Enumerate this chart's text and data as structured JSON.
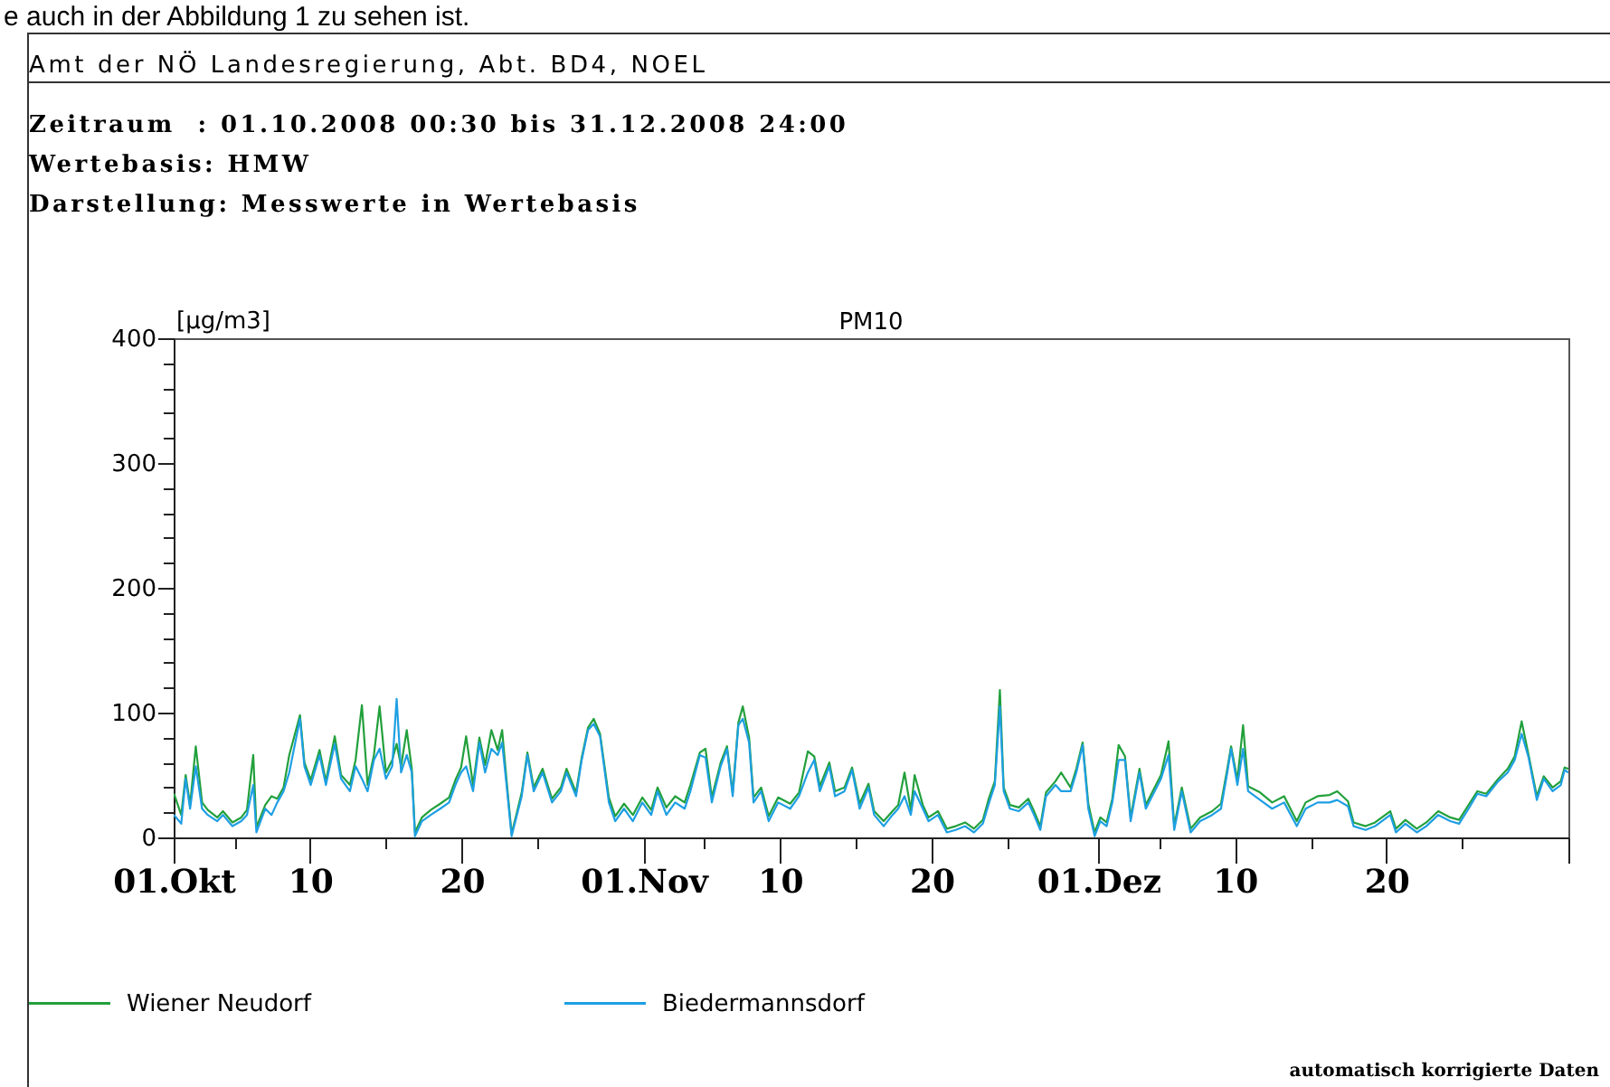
{
  "chart_data": {
    "type": "line",
    "title": "PM10",
    "ylabel": "[μg/m3]",
    "annotations": [
      "e auch in der Abbildung 1 zu sehen ist.",
      "Amt der NÖ Landesregierung, Abt. BD4, NOEL",
      "Zeitraum  : 01.10.2008 00:30 bis 31.12.2008 24:00",
      "Wertebasis: HMW",
      "Darstellung: Messwerte in Wertebasis",
      "automatisch korrigierte Daten"
    ],
    "x": [
      "2008-10-01T00:30",
      "2008-10-01T12:00",
      "2008-10-01T19:00",
      "2008-10-02T02:00",
      "2008-10-02T11:00",
      "2008-10-02T21:00",
      "2008-10-03T06:00",
      "2008-10-03T21:00",
      "2008-10-04T06:00",
      "2008-10-04T21:00",
      "2008-10-05T11:00",
      "2008-10-05T20:00",
      "2008-10-06T06:00",
      "2008-10-06T11:00",
      "2008-10-07T01:00",
      "2008-10-07T11:00",
      "2008-10-07T20:00",
      "2008-10-08T06:00",
      "2008-10-08T15:00",
      "2008-10-09T08:00",
      "2008-10-09T15:00",
      "2008-10-10T01:00",
      "2008-10-10T15:00",
      "2008-10-11T01:00",
      "2008-10-11T15:00",
      "2008-10-12T01:00",
      "2008-10-12T15:00",
      "2008-10-13T00:00",
      "2008-10-13T10:00",
      "2008-10-13T19:00",
      "2008-10-14T05:00",
      "2008-10-14T14:00",
      "2008-10-15T00:00",
      "2008-10-15T10:00",
      "2008-10-15T17:00",
      "2008-10-16T00:00",
      "2008-10-16T09:00",
      "2008-10-16T17:00",
      "2008-10-16T22:00",
      "2008-10-17T09:00",
      "2008-10-17T23:00",
      "2008-10-18T14:00",
      "2008-10-19T04:00",
      "2008-10-19T14:00",
      "2008-10-19T23:00",
      "2008-10-20T07:00",
      "2008-10-20T18:00",
      "2008-10-21T04:00",
      "2008-10-21T13:00",
      "2008-10-21T23:00",
      "2008-10-22T09:00",
      "2008-10-22T16:00",
      "2008-10-22T23:00",
      "2008-10-23T07:00",
      "2008-10-23T13:00",
      "2008-10-23T23:00",
      "2008-10-24T08:00",
      "2008-10-24T18:00",
      "2008-10-25T08:00",
      "2008-10-25T23:00",
      "2008-10-26T13:00",
      "2008-10-26T22:00",
      "2008-10-27T13:00",
      "2008-10-27T22:00",
      "2008-10-28T08:00",
      "2008-10-28T17:00",
      "2008-10-29T03:00",
      "2008-10-29T17:00",
      "2008-10-30T03:00",
      "2008-10-30T17:00",
      "2008-10-31T07:00",
      "2008-10-31T22:00",
      "2008-11-01T12:00",
      "2008-11-01T22:00",
      "2008-11-02T12:00",
      "2008-11-03T02:00",
      "2008-11-03T17:00",
      "2008-11-04T02:00",
      "2008-11-04T17:00",
      "2008-11-05T02:00",
      "2008-11-05T12:00",
      "2008-11-06T02:00",
      "2008-11-06T12:00",
      "2008-11-06T21:00",
      "2008-11-07T06:00",
      "2008-11-07T13:00",
      "2008-11-07T23:00",
      "2008-11-08T06:00",
      "2008-11-08T18:00",
      "2008-11-09T06:00",
      "2008-11-09T21:00",
      "2008-11-10T16:00",
      "2008-11-11T06:00",
      "2008-11-11T20:00",
      "2008-11-12T06:00",
      "2008-11-12T15:00",
      "2008-11-13T06:00",
      "2008-11-13T15:00",
      "2008-11-14T06:00",
      "2008-11-14T18:00",
      "2008-11-15T06:00",
      "2008-11-15T20:00",
      "2008-11-16T05:00",
      "2008-11-16T20:00",
      "2008-11-17T10:00",
      "2008-11-17T19:00",
      "2008-11-18T05:00",
      "2008-11-18T15:00",
      "2008-11-18T21:00",
      "2008-11-19T10:00",
      "2008-11-19T19:00",
      "2008-11-20T10:00",
      "2008-11-21T00:00",
      "2008-11-21T14:00",
      "2008-11-22T05:00",
      "2008-11-22T19:00",
      "2008-11-23T09:00",
      "2008-11-23T19:00",
      "2008-11-24T04:00",
      "2008-11-24T12:00",
      "2008-11-24T18:00",
      "2008-11-25T04:00",
      "2008-11-25T18:00",
      "2008-11-26T09:00",
      "2008-11-26T18:00",
      "2008-11-27T04:00",
      "2008-11-27T13:00",
      "2008-11-28T04:00",
      "2008-11-28T13:00",
      "2008-11-29T04:00",
      "2008-11-29T13:00",
      "2008-11-29T23:00",
      "2008-11-30T08:00",
      "2008-11-30T18:00",
      "2008-12-01T03:00",
      "2008-12-01T13:00",
      "2008-12-01T22:00",
      "2008-12-02T08:00",
      "2008-12-02T18:00",
      "2008-12-03T03:00",
      "2008-12-03T17:00",
      "2008-12-04T03:00",
      "2008-12-04T17:00",
      "2008-12-05T03:00",
      "2008-12-05T15:00",
      "2008-12-06T00:00",
      "2008-12-06T12:00",
      "2008-12-07T02:00",
      "2008-12-07T17:00",
      "2008-12-08T12:00",
      "2008-12-09T02:00",
      "2008-12-09T12:00",
      "2008-12-09T18:00",
      "2008-12-10T04:00",
      "2008-12-10T13:00",
      "2008-12-10T21:00",
      "2008-12-11T16:00",
      "2008-12-12T11:00",
      "2008-12-13T06:00",
      "2008-12-14T02:00",
      "2008-12-14T16:00",
      "2008-12-15T11:00",
      "2008-12-16T06:00",
      "2008-12-16T18:00",
      "2008-12-17T11:00",
      "2008-12-17T20:00",
      "2008-12-18T15:00",
      "2008-12-19T06:00",
      "2008-12-20T06:00",
      "2008-12-20T15:00",
      "2008-12-21T06:00",
      "2008-12-22T00:00",
      "2008-12-22T15:00",
      "2008-12-23T10:00",
      "2008-12-24T05:00",
      "2008-12-24T19:00",
      "2008-12-25T10:00",
      "2008-12-26T00:00",
      "2008-12-26T14:00",
      "2008-12-27T09:00",
      "2008-12-28T00:00",
      "2008-12-28T11:00",
      "2008-12-28T22:00",
      "2008-12-29T09:00",
      "2008-12-29T22:00",
      "2008-12-30T09:00",
      "2008-12-30T23:00",
      "2008-12-31T12:00",
      "2008-12-31T18:00",
      "2009-01-01T00:00"
    ],
    "series": [
      {
        "name": "Wiener Neudorf",
        "color": "#22a03c",
        "values": [
          35,
          18,
          50,
          26,
          73,
          28,
          22,
          16,
          21,
          12,
          16,
          22,
          66,
          8,
          26,
          33,
          31,
          40,
          66,
          98,
          60,
          46,
          70,
          45,
          81,
          50,
          42,
          62,
          106,
          42,
          66,
          105,
          52,
          62,
          75,
          57,
          86,
          55,
          4,
          16,
          22,
          27,
          32,
          46,
          56,
          81,
          42,
          80,
          58,
          86,
          70,
          86,
          46,
          3,
          15,
          36,
          68,
          40,
          55,
          31,
          40,
          55,
          36,
          64,
          88,
          95,
          83,
          32,
          17,
          27,
          18,
          32,
          22,
          40,
          24,
          33,
          28,
          42,
          68,
          71,
          32,
          60,
          73,
          36,
          92,
          105,
          80,
          32,
          40,
          17,
          32,
          27,
          36,
          69,
          65,
          41,
          60,
          37,
          40,
          56,
          27,
          43,
          21,
          13,
          21,
          26,
          52,
          22,
          50,
          26,
          16,
          21,
          7,
          9,
          12,
          7,
          14,
          32,
          45,
          118,
          40,
          26,
          24,
          31,
          21,
          9,
          36,
          45,
          52,
          40,
          55,
          76,
          27,
          4,
          16,
          12,
          31,
          74,
          65,
          16,
          55,
          26,
          40,
          50,
          77,
          9,
          40,
          7,
          16,
          21,
          27,
          55,
          73,
          46,
          90,
          41,
          36,
          28,
          33,
          13,
          28,
          33,
          34,
          37,
          29,
          12,
          9,
          12,
          21,
          7,
          14,
          7,
          12,
          21,
          16,
          14,
          26,
          37,
          35,
          47,
          55,
          65,
          93,
          66,
          33,
          49,
          40,
          45,
          56,
          55
        ]
      },
      {
        "name": "Biedermannsdorf",
        "color": "#1e9fe3",
        "values": [
          18,
          11,
          47,
          23,
          57,
          23,
          18,
          13,
          18,
          9,
          13,
          18,
          42,
          4,
          23,
          18,
          28,
          37,
          52,
          95,
          57,
          42,
          66,
          42,
          75,
          47,
          37,
          57,
          47,
          37,
          62,
          71,
          47,
          57,
          111,
          52,
          66,
          52,
          1,
          13,
          18,
          23,
          28,
          42,
          52,
          57,
          37,
          76,
          52,
          71,
          66,
          76,
          42,
          1,
          13,
          33,
          66,
          37,
          52,
          28,
          37,
          52,
          33,
          62,
          86,
          91,
          81,
          28,
          13,
          23,
          13,
          28,
          18,
          37,
          18,
          28,
          23,
          37,
          66,
          64,
          28,
          57,
          71,
          33,
          90,
          95,
          76,
          28,
          37,
          13,
          28,
          23,
          33,
          52,
          62,
          37,
          57,
          33,
          37,
          54,
          23,
          40,
          18,
          9,
          18,
          23,
          33,
          18,
          37,
          23,
          13,
          18,
          4,
          6,
          9,
          4,
          11,
          28,
          42,
          105,
          37,
          23,
          21,
          28,
          18,
          6,
          33,
          42,
          37,
          37,
          52,
          74,
          23,
          1,
          13,
          9,
          28,
          62,
          62,
          13,
          52,
          23,
          37,
          47,
          66,
          6,
          37,
          4,
          13,
          18,
          23,
          52,
          71,
          42,
          71,
          37,
          30,
          23,
          28,
          9,
          23,
          28,
          28,
          30,
          25,
          9,
          6,
          9,
          18,
          4,
          11,
          4,
          9,
          18,
          13,
          11,
          23,
          35,
          33,
          45,
          52,
          62,
          83,
          64,
          30,
          47,
          37,
          42,
          54,
          52
        ]
      }
    ],
    "xlim": [
      "2008-10-01T00:00",
      "2009-01-01T00:00"
    ],
    "xticks": [
      {
        "value": "2008-10-01",
        "label": "01.Okt"
      },
      {
        "value": "2008-10-05",
        "label": null
      },
      {
        "value": "2008-10-10",
        "label": "10"
      },
      {
        "value": "2008-10-15",
        "label": null
      },
      {
        "value": "2008-10-20",
        "label": "20"
      },
      {
        "value": "2008-10-25",
        "label": null
      },
      {
        "value": "2008-11-01",
        "label": "01.Nov"
      },
      {
        "value": "2008-11-05",
        "label": null
      },
      {
        "value": "2008-11-10",
        "label": "10"
      },
      {
        "value": "2008-11-15",
        "label": null
      },
      {
        "value": "2008-11-20",
        "label": "20"
      },
      {
        "value": "2008-11-25",
        "label": null
      },
      {
        "value": "2008-12-01",
        "label": "01.Dez"
      },
      {
        "value": "2008-12-05",
        "label": null
      },
      {
        "value": "2008-12-10",
        "label": "10"
      },
      {
        "value": "2008-12-15",
        "label": null
      },
      {
        "value": "2008-12-20",
        "label": "20"
      },
      {
        "value": "2008-12-25",
        "label": null
      },
      {
        "value": "2009-01-01",
        "label": null
      }
    ],
    "ylim": [
      0,
      400
    ],
    "yticks": [
      0,
      {
        "value": 20,
        "label": null
      },
      {
        "value": 40,
        "label": null
      },
      {
        "value": 60,
        "label": null
      },
      {
        "value": 80,
        "label": null
      },
      100,
      {
        "value": 120,
        "label": null
      },
      {
        "value": 140,
        "label": null
      },
      {
        "value": 160,
        "label": null
      },
      {
        "value": 180,
        "label": null
      },
      200,
      {
        "value": 220,
        "label": null
      },
      {
        "value": 240,
        "label": null
      },
      {
        "value": 260,
        "label": null
      },
      {
        "value": 280,
        "label": null
      },
      300,
      {
        "value": 320,
        "label": null
      },
      {
        "value": 340,
        "label": null
      },
      {
        "value": 360,
        "label": null
      },
      {
        "value": 380,
        "label": null
      },
      400
    ],
    "legend": "bottom"
  }
}
